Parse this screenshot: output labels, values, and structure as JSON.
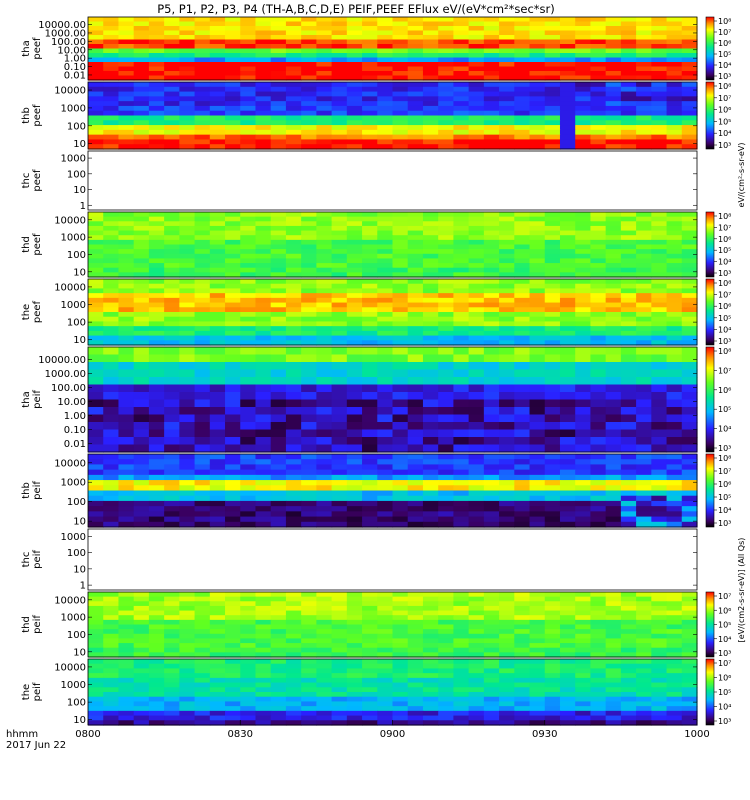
{
  "chart_data": {
    "type": "heatmap",
    "title": "P5, P1, P2, P3, P4 (TH-A,B,C,D,E) PEIF,PEEF EFlux eV/(eV*cm²*sec*sr)",
    "x_axis": {
      "corner_labels": [
        "hhmm",
        "2017 Jun 22"
      ],
      "tick_labels": [
        "0800",
        "0830",
        "0900",
        "0930",
        "1000"
      ],
      "range": [
        "0800",
        "1000"
      ]
    },
    "colorbar_labels": {
      "upper": "eV/(cm²-s-sr-eV)",
      "lower": "[eV/(cm2-s-sr-eV)] (All Qs)",
      "text_repeat": "eV/(cm2-s-sr-eV) (All Qs)"
    },
    "panels": [
      {
        "label1": "tha",
        "label2": "peef",
        "top": 17,
        "bottom": 80,
        "scale": "log",
        "y_ticks": [
          "10000.00",
          "1000.00",
          "100.00",
          "10.00",
          "1.00",
          "0.10",
          "0.01"
        ],
        "ylim": [
          0.01,
          30000
        ],
        "data": true,
        "colormap": "rows",
        "rows": [
          [
            0,
            0.82,
            0.82
          ],
          [
            0.3,
            0.96,
            0.96
          ],
          [
            0.45,
            0.65,
            0.65
          ],
          [
            0.55,
            0.55,
            0.55
          ],
          [
            0.62,
            0.35,
            0.35
          ],
          [
            0.68,
            1.0,
            1.0
          ]
        ],
        "colorbar": {
          "ticks": [
            "10⁸",
            "10⁷",
            "10⁶",
            "10⁵",
            "10⁴",
            "10³"
          ],
          "range": [
            3,
            8
          ]
        }
      },
      {
        "label1": "thb",
        "label2": "peef",
        "top": 82,
        "bottom": 149,
        "scale": "log",
        "y_ticks": [
          "10000",
          "1000",
          "100",
          "10"
        ],
        "ylim": [
          10,
          30000
        ],
        "data": true,
        "colormap": "rows_gap",
        "rows": [
          [
            0,
            0.22,
            0.22
          ],
          [
            0.3,
            0.25,
            0.25
          ],
          [
            0.5,
            0.55,
            0.55
          ],
          [
            0.62,
            0.8,
            0.8
          ],
          [
            0.72,
            0.92,
            0.92
          ],
          [
            0.8,
            1.0,
            1.0
          ]
        ],
        "gap": [
          0.76,
          0.79
        ],
        "colorbar": {
          "ticks": [
            "10⁸",
            "10⁷",
            "10⁶",
            "10⁵",
            "10⁴",
            "10³"
          ],
          "range": [
            3,
            8
          ]
        }
      },
      {
        "label1": "thc",
        "label2": "peef",
        "top": 151,
        "bottom": 210,
        "scale": "log",
        "y_ticks": [
          "1000",
          "100",
          "10",
          "1"
        ],
        "ylim": [
          1,
          1000
        ],
        "data": false
      },
      {
        "label1": "thd",
        "label2": "peef",
        "top": 212,
        "bottom": 277,
        "scale": "log",
        "y_ticks": [
          "10000",
          "1000",
          "100",
          "10"
        ],
        "ylim": [
          10,
          30000
        ],
        "data": true,
        "colormap": "soft",
        "rows": [
          [
            0,
            0.7,
            0.6
          ],
          [
            0.4,
            0.62,
            0.5
          ],
          [
            0.8,
            0.6,
            0.45
          ]
        ],
        "colorbar": {
          "ticks": [
            "10⁸",
            "10⁷",
            "10⁶",
            "10⁵",
            "10⁴",
            "10³"
          ],
          "range": [
            3,
            8
          ]
        }
      },
      {
        "label1": "the",
        "label2": "peef",
        "top": 279,
        "bottom": 345,
        "scale": "log",
        "y_ticks": [
          "10000",
          "1000",
          "100",
          "10"
        ],
        "ylim": [
          10,
          30000
        ],
        "data": true,
        "colormap": "rows",
        "rows": [
          [
            0,
            0.7,
            0.7
          ],
          [
            0.15,
            0.85,
            0.85
          ],
          [
            0.45,
            0.7,
            0.7
          ],
          [
            0.65,
            0.55,
            0.55
          ],
          [
            0.8,
            0.4,
            0.4
          ]
        ],
        "colorbar": {
          "ticks": [
            "10⁸",
            "10⁷",
            "10⁶",
            "10⁵",
            "10⁴",
            "10³"
          ],
          "range": [
            3,
            8
          ]
        }
      },
      {
        "label1": "tha",
        "label2": "peif",
        "top": 347,
        "bottom": 452,
        "scale": "log",
        "y_ticks": [
          "10000.00",
          "1000.00",
          "100.00",
          "10.00",
          "1.00",
          "0.10",
          "0.01"
        ],
        "ylim": [
          0.01,
          30000
        ],
        "data": true,
        "colormap": "low",
        "rows": [
          [
            0,
            0.68,
            0.68
          ],
          [
            0.12,
            0.45,
            0.45
          ],
          [
            0.3,
            0.2,
            0.2
          ],
          [
            0.55,
            0.1,
            0.1
          ],
          [
            0.75,
            0.05,
            0.05
          ]
        ],
        "colorbar": {
          "ticks": [
            "10⁸",
            "10⁷",
            "10⁶",
            "10⁵",
            "10⁴",
            "10³"
          ],
          "range": [
            3,
            8
          ]
        }
      },
      {
        "label1": "thb",
        "label2": "peif",
        "top": 454,
        "bottom": 527,
        "scale": "log",
        "y_ticks": [
          "10000",
          "1000",
          "100",
          "10"
        ],
        "ylim": [
          10,
          30000
        ],
        "data": true,
        "colormap": "stripes",
        "rows": [
          [
            0,
            0.25,
            0.25
          ],
          [
            0.25,
            0.35,
            0.35
          ],
          [
            0.35,
            0.8,
            0.8
          ],
          [
            0.45,
            0.4,
            0.4
          ],
          [
            0.6,
            0.1,
            0.1
          ]
        ],
        "colorbar": {
          "ticks": [
            "10⁸",
            "10⁷",
            "10⁶",
            "10⁵",
            "10⁴",
            "10³"
          ],
          "range": [
            3,
            8
          ]
        }
      },
      {
        "label1": "thc",
        "label2": "peif",
        "top": 529,
        "bottom": 590,
        "scale": "log",
        "y_ticks": [
          "1000",
          "100",
          "10",
          "1"
        ],
        "ylim": [
          1,
          1000
        ],
        "data": false
      },
      {
        "label1": "thd",
        "label2": "peif",
        "top": 592,
        "bottom": 657,
        "scale": "log",
        "y_ticks": [
          "10000",
          "1000",
          "100",
          "10"
        ],
        "ylim": [
          10,
          30000
        ],
        "data": true,
        "colormap": "soft",
        "rows": [
          [
            0,
            0.72,
            0.62
          ],
          [
            0.4,
            0.62,
            0.5
          ],
          [
            0.8,
            0.6,
            0.48
          ]
        ],
        "colorbar": {
          "ticks": [
            "10⁷",
            "10⁶",
            "10⁵",
            "10⁴",
            "10³"
          ],
          "range": [
            3,
            7
          ]
        }
      },
      {
        "label1": "the",
        "label2": "peif",
        "top": 659,
        "bottom": 725,
        "scale": "log",
        "y_ticks": [
          "10000",
          "1000",
          "100",
          "10"
        ],
        "ylim": [
          10,
          30000
        ],
        "data": true,
        "colormap": "rows",
        "rows": [
          [
            0,
            0.55,
            0.55
          ],
          [
            0.25,
            0.5,
            0.5
          ],
          [
            0.55,
            0.38,
            0.38
          ],
          [
            0.75,
            0.2,
            0.2
          ],
          [
            0.9,
            0.12,
            0.12
          ]
        ],
        "colorbar": {
          "ticks": [
            "10⁷",
            "10⁶",
            "10⁵",
            "10⁴",
            "10³"
          ],
          "range": [
            3,
            7
          ]
        }
      }
    ],
    "colormap": "rainbow (black-purple-blue-cyan-green-yellow-red)"
  }
}
